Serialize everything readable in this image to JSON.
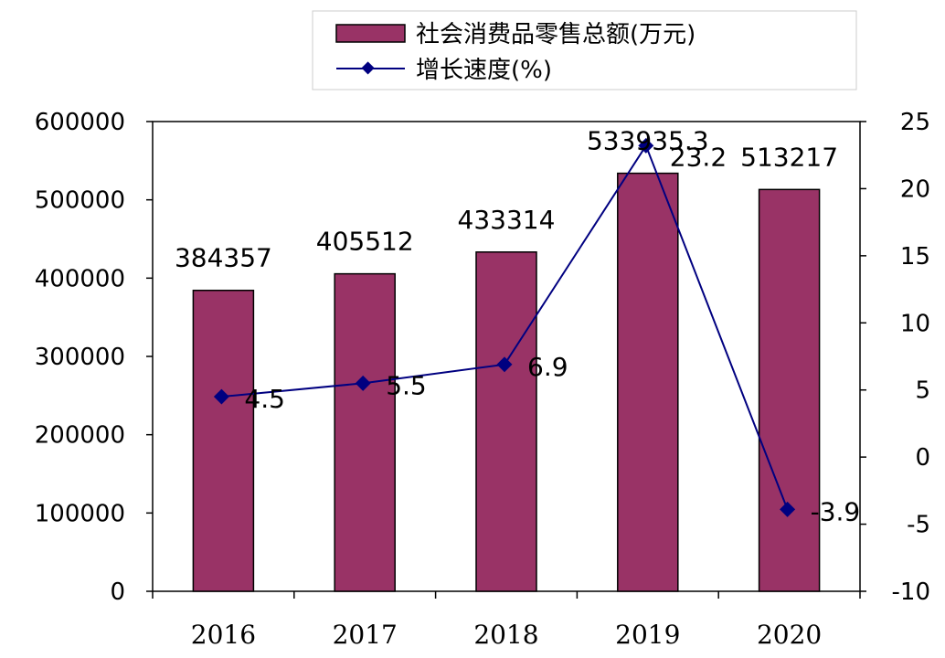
{
  "chart_data": {
    "type": "bar",
    "categories": [
      "2016",
      "2017",
      "2018",
      "2019",
      "2020"
    ],
    "series": [
      {
        "name": "社会消费品零售总额(万元)",
        "kind": "bar",
        "axis": "left",
        "values": [
          384357,
          405512,
          433314,
          533935.3,
          513217
        ],
        "labels": [
          "384357",
          "405512",
          "433314",
          "533935.3",
          "513217"
        ],
        "color": "#993366"
      },
      {
        "name": "增长速度(%)",
        "kind": "line",
        "axis": "right",
        "values": [
          4.5,
          5.5,
          6.9,
          23.2,
          -3.9
        ],
        "labels": [
          "4.5",
          "5.5",
          "6.9",
          "23.2",
          "-3.9"
        ],
        "color": "#000080"
      }
    ],
    "y_left": {
      "ylim": [
        0,
        600000
      ],
      "ticks": [
        "600000",
        "500000",
        "400000",
        "300000",
        "200000",
        "100000",
        "0"
      ]
    },
    "y_right": {
      "ylim": [
        -10,
        25
      ],
      "ticks": [
        "25",
        "20",
        "15",
        "10",
        "5",
        "0",
        "-5",
        "-10"
      ]
    },
    "title": "",
    "legend_position": "top",
    "grid": false
  }
}
